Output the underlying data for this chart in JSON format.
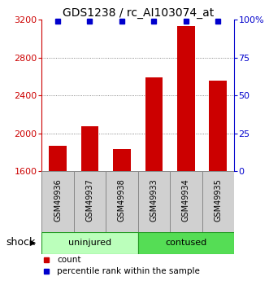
{
  "title": "GDS1238 / rc_AI103074_at",
  "categories": [
    "GSM49936",
    "GSM49937",
    "GSM49938",
    "GSM49933",
    "GSM49934",
    "GSM49935"
  ],
  "bar_values": [
    1870,
    2075,
    1840,
    2590,
    3130,
    2555
  ],
  "percentile_values": [
    99,
    99,
    99,
    99,
    99,
    99
  ],
  "bar_color": "#cc0000",
  "percentile_color": "#0000cc",
  "ylim_left": [
    1600,
    3200
  ],
  "ylim_right": [
    0,
    100
  ],
  "yticks_left": [
    1600,
    2000,
    2400,
    2800,
    3200
  ],
  "yticks_right": [
    0,
    25,
    50,
    75,
    100
  ],
  "ytick_labels_right": [
    "0",
    "25",
    "50",
    "75",
    "100%"
  ],
  "groups": [
    {
      "label": "uninjured",
      "indices": [
        0,
        1,
        2
      ],
      "color": "#bbffbb"
    },
    {
      "label": "contused",
      "indices": [
        3,
        4,
        5
      ],
      "color": "#55dd55"
    }
  ],
  "shock_label": "shock",
  "legend_count_label": "count",
  "legend_pct_label": "percentile rank within the sample",
  "bar_width": 0.55,
  "background_color": "#ffffff",
  "grid_color": "#666666",
  "title_fontsize": 10,
  "tick_fontsize": 8,
  "label_fontsize": 7,
  "group_fontsize": 8,
  "legend_fontsize": 7.5,
  "shock_fontsize": 9
}
